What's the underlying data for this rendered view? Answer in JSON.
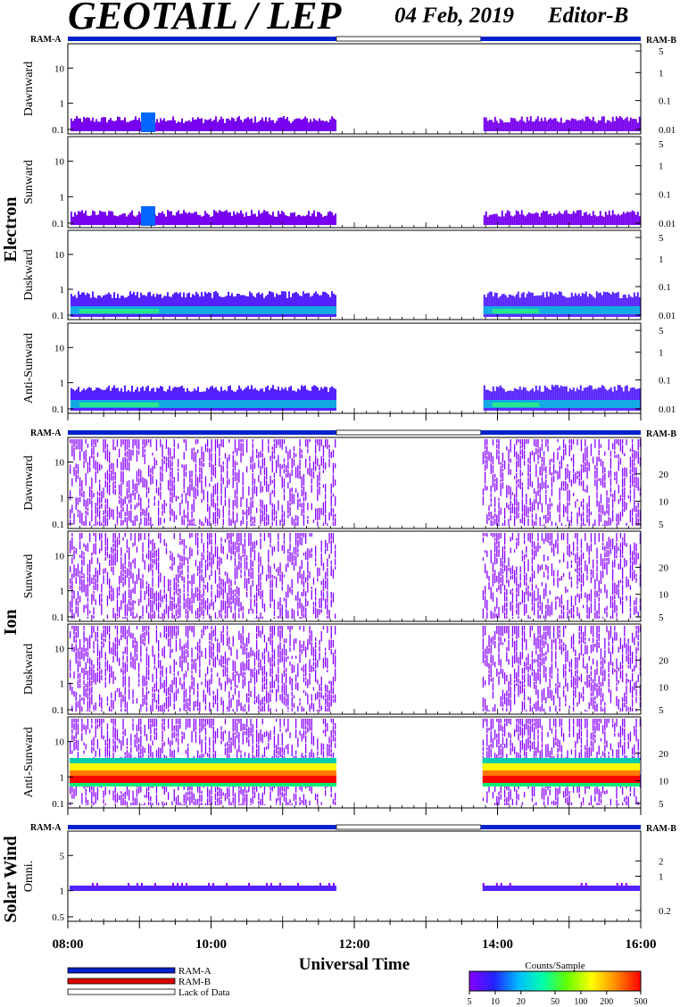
{
  "header": {
    "title": "GEOTAIL / LEP",
    "date": "04 Feb, 2019",
    "editor": "Editor-B"
  },
  "chart_data": {
    "type": "heatmap",
    "xlabel": "Universal Time",
    "x_range": [
      "08:00",
      "16:00"
    ],
    "x_ticks": [
      "08:00",
      "10:00",
      "12:00",
      "14:00",
      "16:00"
    ],
    "data_gap": [
      "11:45",
      "13:46"
    ],
    "mode_bar": {
      "left_label": "RAM-A",
      "right_label": "RAM-B"
    },
    "groups": [
      {
        "name": "Electron",
        "panels": [
          {
            "label": "Dawnward",
            "left_ticks": [
              "10",
              "1",
              "0.1"
            ],
            "right_ticks": [
              "5",
              "1",
              "0.1",
              "0.01"
            ]
          },
          {
            "label": "Sunward",
            "left_ticks": [
              "10",
              "1",
              "0.1"
            ],
            "right_ticks": [
              "5",
              "1",
              "0.1",
              "0.01"
            ]
          },
          {
            "label": "Duskward",
            "left_ticks": [
              "10",
              "1",
              "0.1"
            ],
            "right_ticks": [
              "5",
              "1",
              "0.1",
              "0.01"
            ]
          },
          {
            "label": "Anti-Sunward",
            "left_ticks": [
              "10",
              "1",
              "0.1"
            ],
            "right_ticks": [
              "5",
              "1",
              "0.1",
              "0.01"
            ]
          }
        ]
      },
      {
        "name": "Ion",
        "panels": [
          {
            "label": "Dawnward",
            "left_ticks": [
              "10",
              "1",
              "0.1"
            ],
            "right_ticks": [
              "20",
              "10",
              "5"
            ]
          },
          {
            "label": "Sunward",
            "left_ticks": [
              "10",
              "1",
              "0.1"
            ],
            "right_ticks": [
              "20",
              "10",
              "5"
            ]
          },
          {
            "label": "Duskward",
            "left_ticks": [
              "10",
              "1",
              "0.1"
            ],
            "right_ticks": [
              "20",
              "10",
              "5"
            ]
          },
          {
            "label": "Anti-Sunward",
            "left_ticks": [
              "10",
              "1",
              "0.1"
            ],
            "right_ticks": [
              "20",
              "10",
              "5"
            ]
          }
        ]
      },
      {
        "name": "Solar Wind",
        "panels": [
          {
            "label": "Omni.",
            "left_ticks": [
              "5",
              "1",
              "0.5"
            ],
            "right_ticks": [
              "2",
              "1",
              "0.2"
            ]
          }
        ]
      }
    ],
    "legend": {
      "items": [
        "RAM-A",
        "RAM-B",
        "Lack of Data"
      ],
      "colors": [
        "#0022cc",
        "#dd0000",
        "#ffffff"
      ]
    },
    "colorbar": {
      "title": "Counts/Sample",
      "ticks": [
        "5",
        "10",
        "20",
        "50",
        "100",
        "200",
        "500"
      ],
      "colors": [
        "#8800ff",
        "#2222ff",
        "#00bbff",
        "#00ffaa",
        "#66ff00",
        "#ffff00",
        "#ff8800",
        "#ff0000"
      ]
    }
  }
}
